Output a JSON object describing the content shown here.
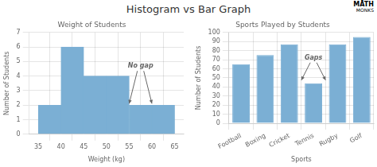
{
  "title": "Histogram vs Bar Graph",
  "annotations": [
    "MĀTH",
    "MONKS"
  ],
  "chart_data": [
    {
      "type": "histogram",
      "title": "Weight of Students",
      "xlabel": "Weight (kg)",
      "ylabel": "Number of Students",
      "bins": [
        35,
        40,
        45,
        50,
        55,
        60,
        65
      ],
      "values": [
        2,
        6,
        4,
        4,
        2,
        2
      ],
      "color": "#7bafd4",
      "xlim": [
        33,
        67
      ],
      "xticks": [
        35,
        40,
        45,
        50,
        55,
        60,
        65
      ],
      "ylim": [
        0,
        7
      ],
      "yticks": [
        0,
        1,
        2,
        3,
        4,
        5,
        6,
        7
      ],
      "grid": true,
      "annotation": "No gap"
    },
    {
      "type": "bar",
      "title": "Sports Played by Students",
      "xlabel": "Sports",
      "ylabel": "Number of Students",
      "categories": [
        "Football",
        "Boxing",
        "Cricket",
        "Tennis",
        "Rugby",
        "Golf"
      ],
      "values": [
        65,
        75,
        87,
        44,
        87,
        95
      ],
      "color": "#7bafd4",
      "ylim": [
        0,
        100
      ],
      "yticks": [
        0,
        10,
        20,
        30,
        40,
        50,
        60,
        70,
        80,
        90,
        100
      ],
      "grid": true,
      "annotation": "Gaps"
    }
  ]
}
